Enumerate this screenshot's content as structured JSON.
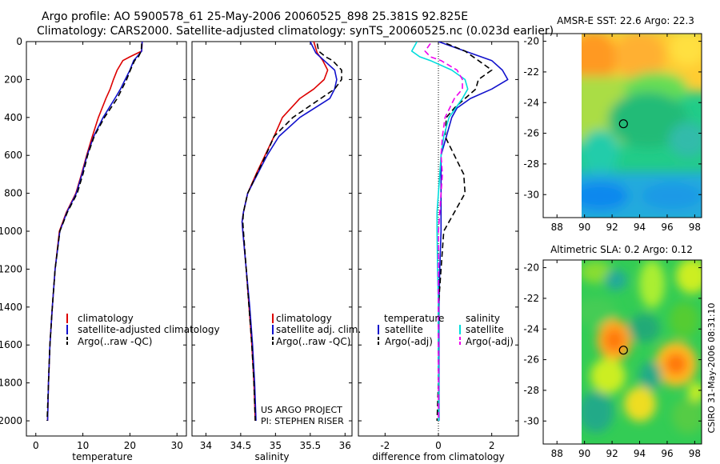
{
  "header": {
    "line1": "Argo profile: AO 5900578_61 25-May-2006 20060525_898 25.381S 92.825E",
    "line2": "Climatology: CARS2000. Satellite-adjusted climatology: synTS_20060525.nc (0.023d earlier)"
  },
  "side_text": "CSIRO 31-May-2006 08:31:10",
  "credit": {
    "line1": "US ARGO PROJECT",
    "line2": "PI: STEPHEN RISER"
  },
  "colors": {
    "red": "#dd0000",
    "blue": "#1111cc",
    "black": "#000000",
    "cyan": "#00dddd",
    "magenta": "#ee00ee"
  },
  "chart_data": [
    {
      "id": "temperature",
      "type": "line",
      "xlabel": "temperature",
      "xlim": [
        -2,
        32
      ],
      "ylim": [
        2080,
        0
      ],
      "xticks": [
        0,
        10,
        20,
        30
      ],
      "yticks": [
        0,
        200,
        400,
        600,
        800,
        1000,
        1200,
        1400,
        1600,
        1800,
        2000
      ],
      "legend": {
        "placement": "lower-left",
        "entries": [
          "climatology",
          "satellite-adjusted climatology",
          "Argo(..raw -QC)"
        ]
      },
      "series": [
        {
          "name": "climatology",
          "color": "red",
          "style": "solid",
          "depth": [
            0,
            50,
            80,
            100,
            150,
            200,
            250,
            300,
            400,
            500,
            600,
            700,
            800,
            900,
            1000,
            1200,
            1400,
            1600,
            1800,
            2000
          ],
          "values": [
            22.6,
            22.5,
            20.0,
            18.5,
            17.3,
            16.5,
            15.8,
            14.9,
            13.3,
            12.0,
            10.8,
            9.7,
            8.5,
            6.5,
            5.0,
            4.1,
            3.5,
            3.0,
            2.7,
            2.5
          ]
        },
        {
          "name": "satellite-adjusted climatology",
          "color": "blue",
          "style": "solid",
          "depth": [
            0,
            50,
            80,
            100,
            150,
            200,
            250,
            300,
            400,
            500,
            600,
            700,
            800,
            900,
            1000,
            1200,
            1400,
            1600,
            1800,
            2000
          ],
          "values": [
            22.6,
            22.5,
            21.5,
            20.8,
            20.0,
            19.0,
            18.0,
            16.8,
            14.3,
            12.3,
            10.9,
            9.8,
            8.6,
            6.6,
            5.1,
            4.1,
            3.5,
            3.0,
            2.7,
            2.5
          ]
        },
        {
          "name": "Argo(..raw -QC)",
          "color": "black",
          "style": "dashed",
          "depth": [
            10,
            50,
            80,
            100,
            150,
            200,
            250,
            300,
            400,
            500,
            600,
            700,
            800,
            900,
            1000,
            1200,
            1400,
            1600,
            1800,
            2000
          ],
          "values": [
            22.5,
            22.4,
            21.8,
            21.0,
            20.1,
            19.3,
            18.3,
            17.3,
            14.6,
            12.4,
            11.0,
            10.0,
            8.8,
            6.7,
            5.1,
            4.1,
            3.5,
            3.0,
            2.7,
            2.4
          ]
        }
      ]
    },
    {
      "id": "salinity",
      "type": "line",
      "xlabel": "salinity",
      "xlim": [
        33.8,
        36.1
      ],
      "ylim": [
        2080,
        0
      ],
      "xticks": [
        34,
        34.5,
        35,
        35.5,
        36
      ],
      "legend": {
        "placement": "lower-right",
        "entries": [
          "climatology",
          "satellite adj. clim.",
          "Argo(..raw -QC)"
        ]
      },
      "series": [
        {
          "name": "climatology",
          "color": "red",
          "style": "solid",
          "depth": [
            0,
            60,
            100,
            150,
            200,
            250,
            300,
            400,
            500,
            600,
            700,
            800,
            900,
            950,
            1000,
            1200,
            1400,
            1600,
            1800,
            2000
          ],
          "values": [
            35.55,
            35.6,
            35.68,
            35.75,
            35.7,
            35.55,
            35.35,
            35.1,
            34.98,
            34.85,
            34.72,
            34.6,
            34.54,
            34.52,
            34.53,
            34.58,
            34.62,
            34.66,
            34.69,
            34.71
          ]
        },
        {
          "name": "satellite adj. clim.",
          "color": "blue",
          "style": "solid",
          "depth": [
            0,
            60,
            100,
            150,
            200,
            250,
            300,
            400,
            500,
            600,
            700,
            800,
            900,
            950,
            1000,
            1200,
            1400,
            1600,
            1800,
            2000
          ],
          "values": [
            35.5,
            35.58,
            35.7,
            35.85,
            35.88,
            35.85,
            35.78,
            35.35,
            35.05,
            34.88,
            34.74,
            34.6,
            34.54,
            34.52,
            34.53,
            34.58,
            34.63,
            34.67,
            34.7,
            34.72
          ]
        },
        {
          "name": "Argo(..raw -QC)",
          "color": "black",
          "style": "dashed",
          "depth": [
            10,
            50,
            80,
            100,
            150,
            200,
            250,
            300,
            400,
            500,
            600,
            700,
            800,
            900,
            950,
            1000,
            1200,
            1400,
            1600,
            1800,
            2000
          ],
          "values": [
            35.6,
            35.62,
            35.72,
            35.82,
            35.95,
            35.95,
            35.85,
            35.65,
            35.25,
            34.98,
            34.86,
            34.73,
            34.6,
            34.54,
            34.53,
            34.54,
            34.58,
            34.62,
            34.66,
            34.69,
            34.71
          ]
        }
      ]
    },
    {
      "id": "difference",
      "type": "line",
      "xlabel": "difference from climatology",
      "xlim": [
        -3,
        3
      ],
      "ylim": [
        2080,
        0
      ],
      "xticks": [
        -2,
        0,
        2
      ],
      "zero_line": true,
      "legend": {
        "placement": "lower-center",
        "temperature_header": "temperature",
        "salinity_header": "salinity",
        "temperature_entries": [
          "satellite",
          "Argo(-adj)"
        ],
        "salinity_entries": [
          "satellite",
          "Argo(-adj)"
        ]
      },
      "series": [
        {
          "name": "temperature satellite",
          "color": "blue",
          "style": "solid",
          "depth": [
            0,
            50,
            100,
            150,
            200,
            250,
            300,
            350,
            400,
            500,
            600,
            700,
            800,
            900,
            1000,
            1200,
            1400,
            1600,
            1800,
            2000
          ],
          "values": [
            0.0,
            1.0,
            2.0,
            2.4,
            2.6,
            2.0,
            1.2,
            0.7,
            0.5,
            0.3,
            0.1,
            0.1,
            0.1,
            0.1,
            0.1,
            0.05,
            0.02,
            0.02,
            0.02,
            0.02
          ]
        },
        {
          "name": "temperature Argo(-adj)",
          "color": "black",
          "style": "dashed",
          "depth": [
            10,
            50,
            100,
            150,
            200,
            250,
            300,
            350,
            400,
            500,
            600,
            700,
            800,
            900,
            1000,
            1200,
            1400,
            1600,
            1800,
            2000
          ],
          "values": [
            0.3,
            1.0,
            1.5,
            2.0,
            1.5,
            1.4,
            1.0,
            0.6,
            0.3,
            0.25,
            0.6,
            0.95,
            1.0,
            0.6,
            0.2,
            0.1,
            0.0,
            0.0,
            0.0,
            -0.05
          ]
        },
        {
          "name": "salinity satellite",
          "color": "cyan",
          "style": "solid",
          "depth": [
            0,
            50,
            80,
            100,
            150,
            200,
            250,
            300,
            400,
            500,
            600,
            700,
            800,
            900,
            1000,
            1200,
            1400,
            1600,
            1800,
            2000
          ],
          "values": [
            -0.8,
            -1.0,
            -0.7,
            -0.3,
            0.5,
            1.0,
            1.1,
            0.9,
            0.4,
            0.2,
            0.1,
            0.05,
            0.0,
            -0.05,
            -0.05,
            -0.03,
            0.0,
            0.0,
            0.01,
            0.01
          ]
        },
        {
          "name": "salinity Argo(-adj)",
          "color": "magenta",
          "style": "dashed",
          "depth": [
            10,
            50,
            80,
            100,
            150,
            200,
            250,
            300,
            400,
            500,
            600,
            700,
            800,
            900,
            1000,
            1200,
            1400,
            1600,
            1800,
            2000
          ],
          "values": [
            -0.3,
            -0.5,
            -0.3,
            0.1,
            0.7,
            0.9,
            0.9,
            0.6,
            0.25,
            0.15,
            0.1,
            0.15,
            0.1,
            0.05,
            0.0,
            0.0,
            0.0,
            0.0,
            0.0,
            0.0
          ]
        }
      ]
    },
    {
      "id": "sst_map",
      "type": "heatmap",
      "title": "AMSR-E SST: 22.6 Argo: 22.3",
      "xlim": [
        87,
        98.5
      ],
      "ylim": [
        -31.5,
        -19.5
      ],
      "xticks": [
        88,
        90,
        92,
        94,
        96,
        98
      ],
      "yticks": [
        -20,
        -22,
        -24,
        -26,
        -28,
        -30
      ],
      "data_lon_range": [
        89.9,
        98.5
      ],
      "marker": {
        "lon": 92.825,
        "lat": -25.381
      }
    },
    {
      "id": "sla_map",
      "type": "heatmap",
      "title": "Altimetric SLA: 0.2 Argo: 0.12",
      "xlim": [
        87,
        98.5
      ],
      "ylim": [
        -31.5,
        -19.5
      ],
      "xticks": [
        88,
        90,
        92,
        94,
        96,
        98
      ],
      "yticks": [
        -20,
        -22,
        -24,
        -26,
        -28,
        -30
      ],
      "data_lon_range": [
        89.9,
        98.5
      ],
      "marker": {
        "lon": 92.825,
        "lat": -25.381
      }
    }
  ]
}
